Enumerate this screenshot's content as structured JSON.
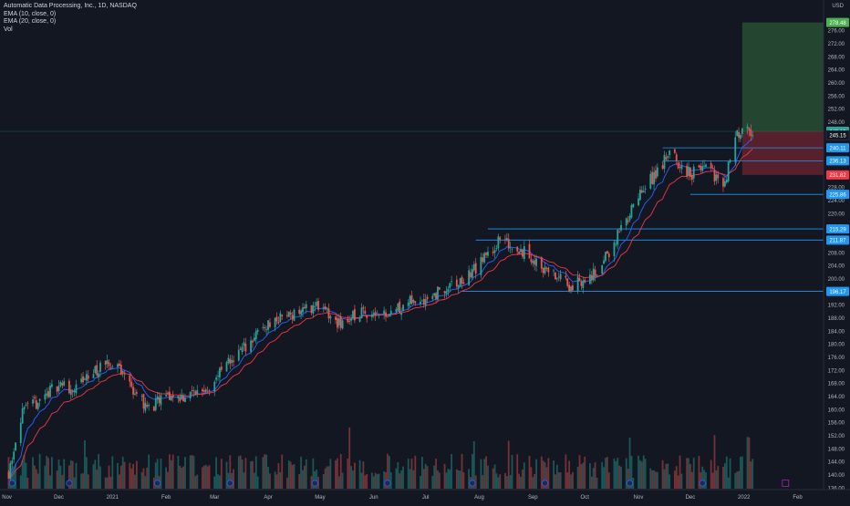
{
  "legend": {
    "symbol": "Automatic Data Processing, Inc., 1D, NASDAQ",
    "ema10": "EMA (10, close, 0)",
    "ema20": "EMA (20, close, 0)",
    "vol": "Vol"
  },
  "chart_data": {
    "type": "candlestick",
    "currency": "USD",
    "ylim": [
      135.5,
      282
    ],
    "y_ticks": [
      136,
      140,
      144,
      148,
      152,
      156,
      160,
      164,
      168,
      172,
      176,
      180,
      184,
      188,
      192,
      196,
      200,
      204,
      208,
      212,
      216,
      220,
      224,
      228,
      232,
      236,
      240,
      244,
      248,
      252,
      256,
      260,
      264,
      268,
      272,
      276
    ],
    "x_ticks": [
      "Nov",
      "Dec",
      "2021",
      "Feb",
      "Mar",
      "Apr",
      "May",
      "Jun",
      "Jul",
      "Aug",
      "Sep",
      "Oct",
      "Nov",
      "Dec",
      "2022",
      "Feb"
    ],
    "close_path": [
      {
        "date": "2020-11-02",
        "close": 141
      },
      {
        "date": "2020-11-09",
        "close": 158
      },
      {
        "date": "2020-11-20",
        "close": 163
      },
      {
        "date": "2020-12-01",
        "close": 168
      },
      {
        "date": "2020-12-10",
        "close": 166
      },
      {
        "date": "2020-12-22",
        "close": 172
      },
      {
        "date": "2021-01-04",
        "close": 174
      },
      {
        "date": "2021-01-12",
        "close": 167
      },
      {
        "date": "2021-01-22",
        "close": 160
      },
      {
        "date": "2021-02-01",
        "close": 164
      },
      {
        "date": "2021-02-12",
        "close": 164
      },
      {
        "date": "2021-02-26",
        "close": 167
      },
      {
        "date": "2021-03-10",
        "close": 175
      },
      {
        "date": "2021-03-18",
        "close": 179
      },
      {
        "date": "2021-03-31",
        "close": 186
      },
      {
        "date": "2021-04-12",
        "close": 189
      },
      {
        "date": "2021-04-29",
        "close": 192
      },
      {
        "date": "2021-05-12",
        "close": 186
      },
      {
        "date": "2021-05-26",
        "close": 190
      },
      {
        "date": "2021-06-09",
        "close": 190
      },
      {
        "date": "2021-06-24",
        "close": 193
      },
      {
        "date": "2021-07-09",
        "close": 196
      },
      {
        "date": "2021-07-22",
        "close": 199
      },
      {
        "date": "2021-08-02",
        "close": 205
      },
      {
        "date": "2021-08-13",
        "close": 212
      },
      {
        "date": "2021-08-25",
        "close": 209
      },
      {
        "date": "2021-09-08",
        "close": 203
      },
      {
        "date": "2021-09-22",
        "close": 198
      },
      {
        "date": "2021-10-04",
        "close": 200
      },
      {
        "date": "2021-10-15",
        "close": 208
      },
      {
        "date": "2021-10-29",
        "close": 222
      },
      {
        "date": "2021-11-09",
        "close": 231
      },
      {
        "date": "2021-11-19",
        "close": 238
      },
      {
        "date": "2021-12-01",
        "close": 232
      },
      {
        "date": "2021-12-10",
        "close": 235
      },
      {
        "date": "2021-12-20",
        "close": 228
      },
      {
        "date": "2021-12-28",
        "close": 245
      },
      {
        "date": "2022-01-04",
        "close": 247
      },
      {
        "date": "2022-01-06",
        "close": 242
      }
    ],
    "levels": [
      {
        "value": 240.11,
        "color": "#2196f3"
      },
      {
        "value": 236.13,
        "color": "#2196f3"
      },
      {
        "value": 225.86,
        "color": "#2196f3"
      },
      {
        "value": 215.29,
        "color": "#2196f3"
      },
      {
        "value": 211.87,
        "color": "#2196f3"
      },
      {
        "value": 196.17,
        "color": "#2196f3"
      }
    ],
    "last_price": {
      "value": 245.15,
      "color": "#26a69a"
    },
    "position": {
      "target": 278.48,
      "stop": 231.82,
      "entry": 245.15,
      "profit_color": "#4caf50",
      "loss_color": "#f23645"
    },
    "scale_labels": [
      "278.48",
      "245.15",
      "245.15",
      "240.11",
      "236.13",
      "231.82",
      "225.86",
      "215.29",
      "211.87",
      "196.17"
    ],
    "colors": {
      "up": "#26a69a",
      "down": "#ef5350",
      "ema10": "#2962ff",
      "ema20": "#f23645",
      "level": "#2196f3",
      "background": "#131722"
    }
  }
}
